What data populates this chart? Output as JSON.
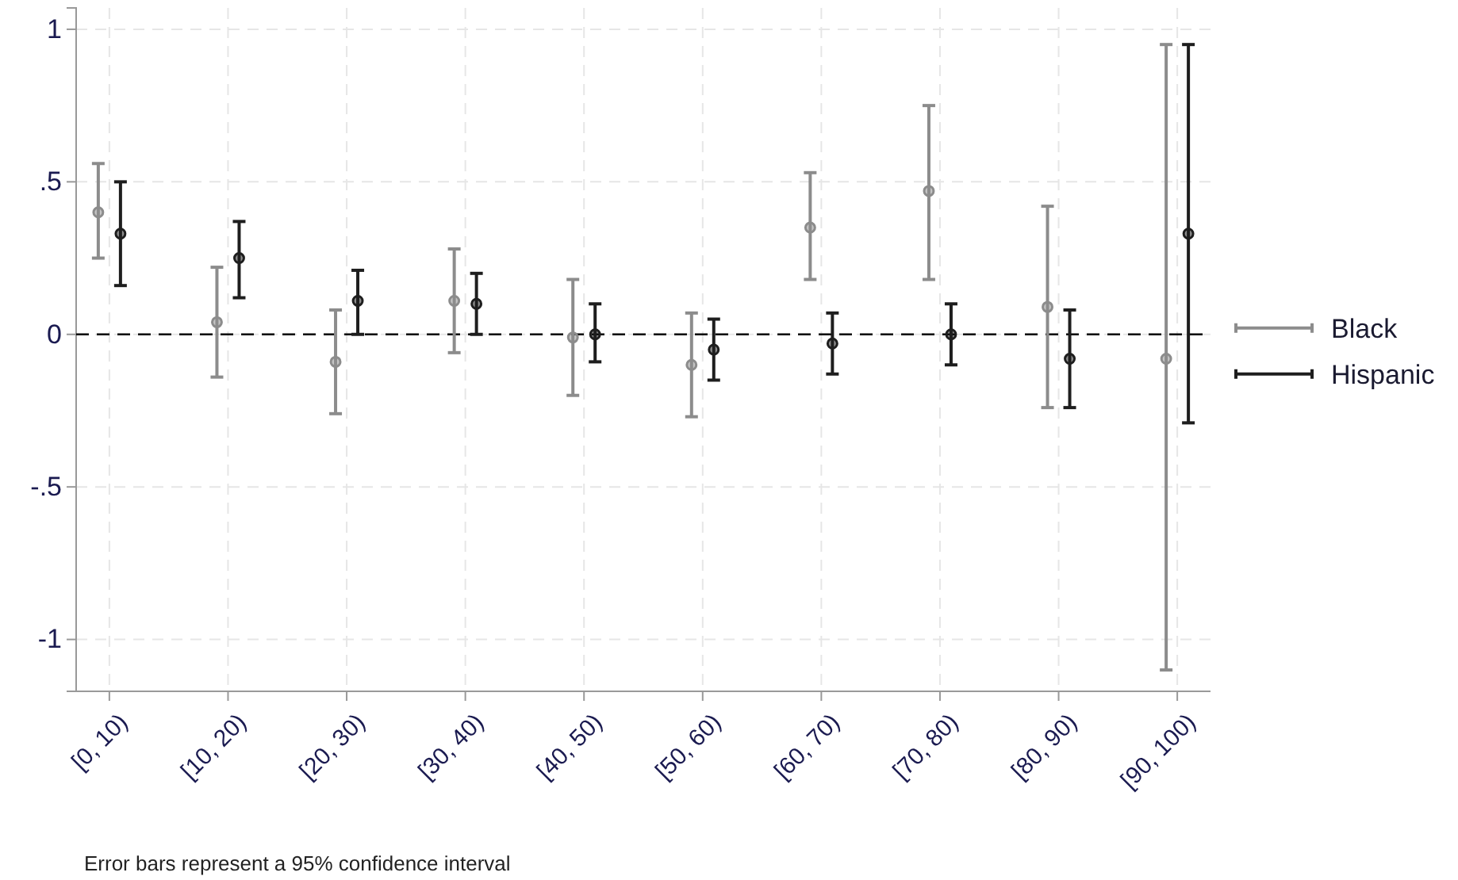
{
  "chart_data": {
    "type": "scatter",
    "categories": [
      "[0, 10)",
      "[10, 20)",
      "[20, 30)",
      "[30, 40)",
      "[40, 50)",
      "[50, 60)",
      "[60, 70)",
      "[70, 80)",
      "[80, 90)",
      "[90, 100)"
    ],
    "series": [
      {
        "name": "Black",
        "color": "#8c8c8c",
        "values": [
          0.4,
          0.04,
          -0.09,
          0.11,
          -0.01,
          -0.1,
          0.35,
          0.47,
          0.09,
          -0.08
        ],
        "errors": [
          [
            0.25,
            0.56
          ],
          [
            -0.14,
            0.22
          ],
          [
            -0.26,
            0.08
          ],
          [
            -0.06,
            0.28
          ],
          [
            -0.2,
            0.18
          ],
          [
            -0.27,
            0.07
          ],
          [
            0.18,
            0.53
          ],
          [
            0.18,
            0.75
          ],
          [
            -0.24,
            0.42
          ],
          [
            -1.1,
            0.95
          ]
        ]
      },
      {
        "name": "Hispanic",
        "color": "#1e1e1e",
        "values": [
          0.33,
          0.25,
          0.11,
          0.1,
          0.0,
          -0.05,
          -0.03,
          0.0,
          -0.08,
          0.33
        ],
        "errors": [
          [
            0.16,
            0.5
          ],
          [
            0.12,
            0.37
          ],
          [
            0.0,
            0.21
          ],
          [
            0.0,
            0.2
          ],
          [
            -0.09,
            0.1
          ],
          [
            -0.15,
            0.05
          ],
          [
            -0.13,
            0.07
          ],
          [
            -0.1,
            0.1
          ],
          [
            -0.24,
            0.08
          ],
          [
            -0.29,
            0.95
          ]
        ]
      }
    ],
    "ylim": [
      -1.17,
      1.07
    ],
    "yticks": [
      {
        "value": -1,
        "label": "-1"
      },
      {
        "value": -0.5,
        "label": "-.5"
      },
      0,
      {
        "value": 0.5,
        "label": ".5"
      },
      1
    ],
    "grid": true,
    "legend": "right",
    "marker": "circle",
    "ref_lines": [
      {
        "axis": "y",
        "value": 0,
        "color": "#000000",
        "line_style": "dashed"
      }
    ],
    "annotations": [
      "Error bars represent a 95% confidence interval"
    ]
  }
}
